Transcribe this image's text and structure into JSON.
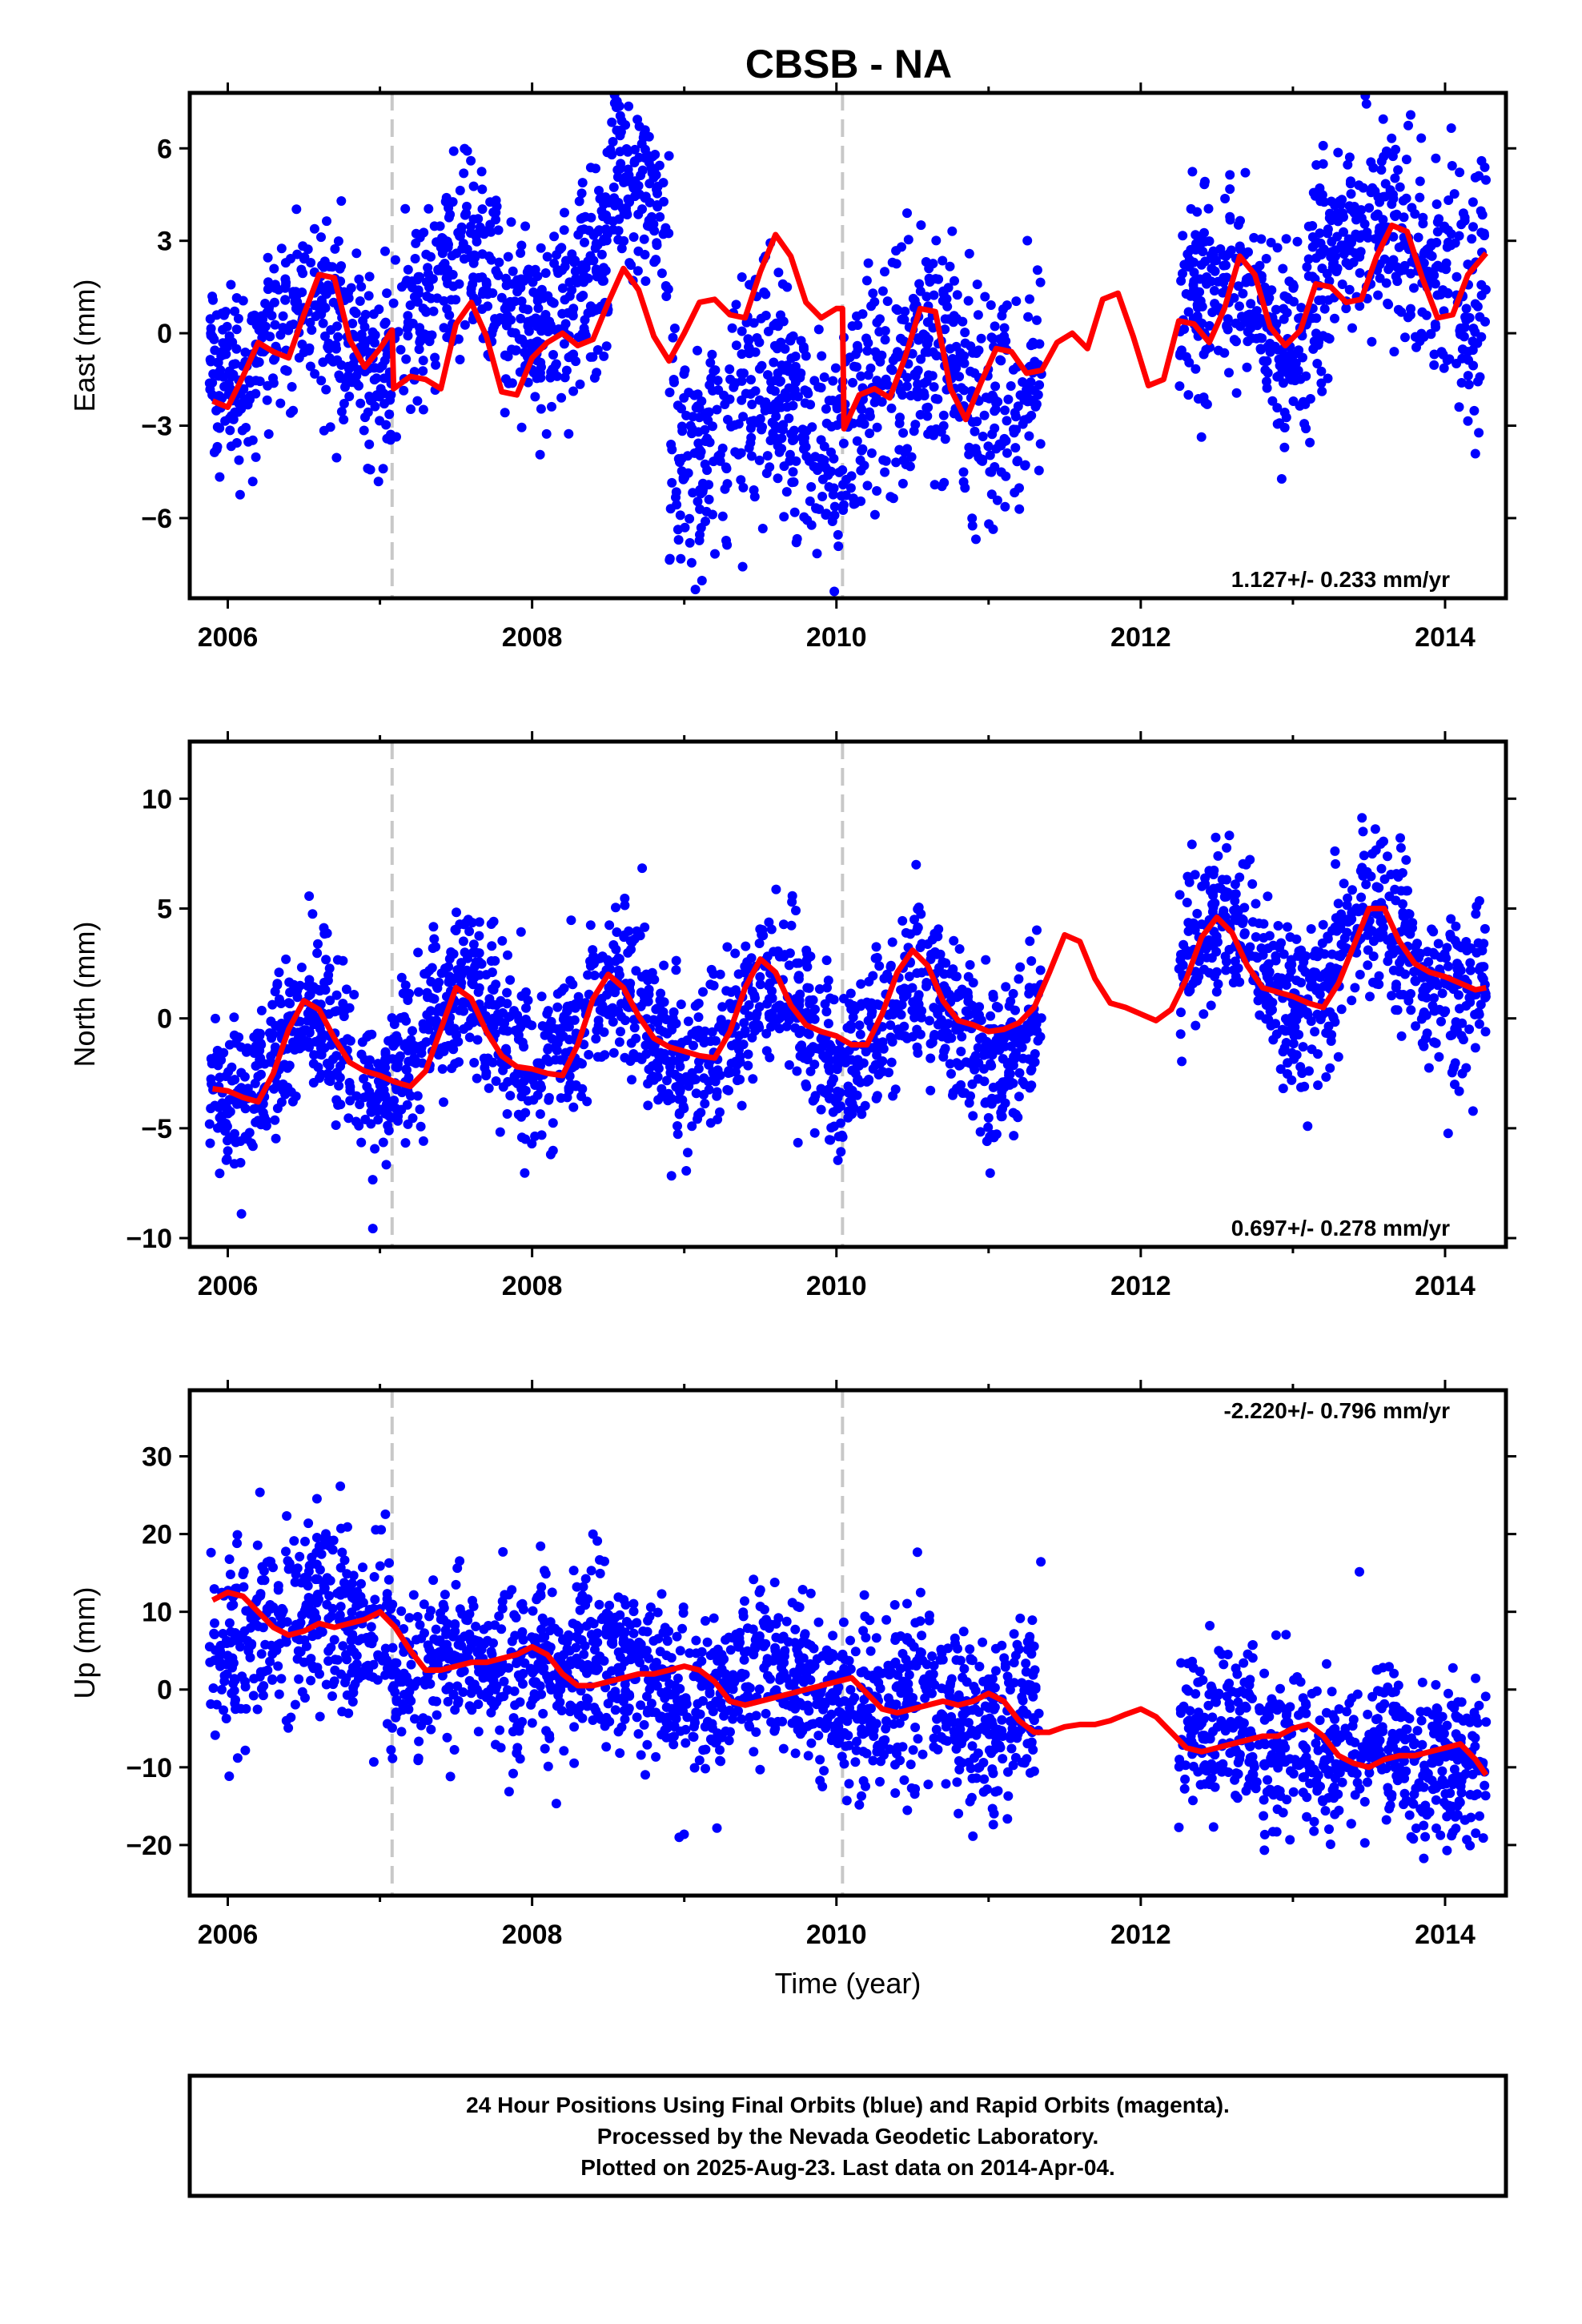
{
  "title": "CBSB - NA",
  "footer": {
    "lines": [
      "24 Hour Positions Using Final Orbits (blue) and Rapid Orbits (magenta).",
      "Processed by the Nevada Geodetic Laboratory.",
      "Plotted on 2025-Aug-23. Last data on 2014-Apr-04."
    ]
  },
  "colors": {
    "points": "#0000ff",
    "model": "#ff0000",
    "breaks": "#c8c8c8",
    "frame": "#000000"
  },
  "chart_data": [
    {
      "type": "scatter",
      "name": "east",
      "ylabel": "East (mm)",
      "xlabel": "",
      "xlim": [
        2005.75,
        2014.4
      ],
      "ylim": [
        -8.6,
        7.8
      ],
      "xticks": [
        2006,
        2008,
        2010,
        2012,
        2014
      ],
      "xtick_labels": [
        "2006",
        "2008",
        "2010",
        "2012",
        "2014"
      ],
      "yticks": [
        6,
        3,
        0,
        -3,
        -6
      ],
      "ytick_labels": [
        "6",
        "3",
        "0",
        "−3",
        "−6"
      ],
      "rate_text": "1.127+/- 0.233 mm/yr",
      "rate_position": "bottom-right",
      "grid": false,
      "break_lines_x": [
        2007.08,
        2010.04
      ],
      "data_gap": [
        2011.35,
        2012.25
      ],
      "model_line": {
        "x": [
          2005.9,
          2006.0,
          2006.1,
          2006.2,
          2006.3,
          2006.4,
          2006.5,
          2006.6,
          2006.7,
          2006.8,
          2006.9,
          2007.0,
          2007.08,
          2007.09,
          2007.2,
          2007.3,
          2007.4,
          2007.5,
          2007.6,
          2007.7,
          2007.8,
          2007.9,
          2008.0,
          2008.1,
          2008.2,
          2008.3,
          2008.4,
          2008.5,
          2008.6,
          2008.7,
          2008.8,
          2008.9,
          2009.0,
          2009.1,
          2009.2,
          2009.3,
          2009.4,
          2009.5,
          2009.6,
          2009.7,
          2009.8,
          2009.9,
          2010.0,
          2010.04,
          2010.05,
          2010.15,
          2010.25,
          2010.35,
          2010.45,
          2010.55,
          2010.65,
          2010.75,
          2010.85,
          2010.95,
          2011.05,
          2011.15,
          2011.25,
          2011.35,
          2011.45,
          2011.55,
          2011.65,
          2011.75,
          2011.85,
          2011.95,
          2012.05,
          2012.15,
          2012.25,
          2012.35,
          2012.45,
          2012.55,
          2012.65,
          2012.75,
          2012.85,
          2012.95,
          2013.05,
          2013.15,
          2013.25,
          2013.35,
          2013.45,
          2013.55,
          2013.65,
          2013.75,
          2013.85,
          2013.95,
          2014.05,
          2014.15,
          2014.27
        ],
        "y": [
          -2.2,
          -2.4,
          -1.4,
          -0.3,
          -0.6,
          -0.8,
          0.6,
          1.9,
          1.8,
          -0.2,
          -1.1,
          -0.5,
          0.1,
          -1.8,
          -1.4,
          -1.5,
          -1.8,
          0.3,
          1.0,
          -0.1,
          -1.9,
          -2.0,
          -0.8,
          -0.3,
          0.0,
          -0.4,
          -0.2,
          1.0,
          2.1,
          1.4,
          -0.1,
          -0.9,
          0.0,
          1.0,
          1.1,
          0.6,
          0.5,
          2.0,
          3.2,
          2.5,
          1.0,
          0.5,
          0.8,
          0.8,
          -3.1,
          -2.0,
          -1.8,
          -2.1,
          -0.8,
          0.8,
          0.7,
          -1.8,
          -2.8,
          -1.6,
          -0.5,
          -0.6,
          -1.3,
          -1.2,
          -0.3,
          0.0,
          -0.5,
          1.1,
          1.3,
          -0.1,
          -1.7,
          -1.5,
          0.4,
          0.3,
          -0.3,
          0.8,
          2.5,
          1.9,
          0.2,
          -0.4,
          0.1,
          1.6,
          1.5,
          1.0,
          1.1,
          2.5,
          3.5,
          3.3,
          1.8,
          0.5,
          0.6,
          1.9,
          2.6
        ]
      },
      "points": {
        "count": 2400,
        "segments": [
          {
            "x_start": 2005.88,
            "x_end": 2007.08,
            "mean": -0.3,
            "sd": 1.5
          },
          {
            "x_start": 2007.08,
            "x_end": 2008.5,
            "mean": 1.3,
            "sd": 1.6
          },
          {
            "x_start": 2008.5,
            "x_end": 2008.9,
            "mean": 4.3,
            "sd": 1.5
          },
          {
            "x_start": 2008.9,
            "x_end": 2010.04,
            "mean": -3.0,
            "sd": 1.9
          },
          {
            "x_start": 2010.04,
            "x_end": 2011.35,
            "mean": -1.6,
            "sd": 1.9
          },
          {
            "x_start": 2012.25,
            "x_end": 2013.1,
            "mean": 0.7,
            "sd": 1.7
          },
          {
            "x_start": 2013.1,
            "x_end": 2014.27,
            "mean": 2.4,
            "sd": 1.8
          }
        ],
        "seasonal_amplitude": 1.2
      }
    },
    {
      "type": "scatter",
      "name": "north",
      "ylabel": "North (mm)",
      "xlabel": "",
      "xlim": [
        2005.75,
        2014.4
      ],
      "ylim": [
        -10.4,
        12.6
      ],
      "xticks": [
        2006,
        2008,
        2010,
        2012,
        2014
      ],
      "xtick_labels": [
        "2006",
        "2008",
        "2010",
        "2012",
        "2014"
      ],
      "yticks": [
        10,
        5,
        0,
        -5,
        -10
      ],
      "ytick_labels": [
        "10",
        "5",
        "0",
        "−5",
        "−10"
      ],
      "rate_text": "0.697+/- 0.278 mm/yr",
      "rate_position": "bottom-right",
      "grid": false,
      "break_lines_x": [
        2007.08,
        2010.04
      ],
      "data_gap": [
        2011.35,
        2012.25
      ],
      "model_line": {
        "x": [
          2005.9,
          2006.0,
          2006.1,
          2006.2,
          2006.3,
          2006.4,
          2006.5,
          2006.6,
          2006.7,
          2006.8,
          2006.9,
          2007.0,
          2007.1,
          2007.2,
          2007.3,
          2007.4,
          2007.5,
          2007.6,
          2007.7,
          2007.8,
          2007.9,
          2008.0,
          2008.1,
          2008.2,
          2008.3,
          2008.4,
          2008.5,
          2008.6,
          2008.7,
          2008.8,
          2008.9,
          2009.0,
          2009.1,
          2009.2,
          2009.3,
          2009.4,
          2009.5,
          2009.6,
          2009.7,
          2009.8,
          2009.9,
          2010.0,
          2010.1,
          2010.2,
          2010.3,
          2010.4,
          2010.5,
          2010.6,
          2010.7,
          2010.8,
          2010.9,
          2011.0,
          2011.1,
          2011.2,
          2011.3,
          2011.4,
          2011.5,
          2011.6,
          2011.7,
          2011.8,
          2011.9,
          2012.0,
          2012.1,
          2012.2,
          2012.3,
          2012.4,
          2012.5,
          2012.6,
          2012.7,
          2012.8,
          2012.9,
          2013.0,
          2013.1,
          2013.2,
          2013.3,
          2013.4,
          2013.5,
          2013.6,
          2013.7,
          2013.8,
          2013.9,
          2014.0,
          2014.1,
          2014.2,
          2014.27
        ],
        "y": [
          -3.2,
          -3.3,
          -3.6,
          -3.8,
          -2.5,
          -0.5,
          0.8,
          0.4,
          -0.9,
          -2.0,
          -2.4,
          -2.6,
          -2.9,
          -3.1,
          -2.4,
          -0.5,
          1.4,
          0.9,
          -0.6,
          -1.7,
          -2.2,
          -2.3,
          -2.5,
          -2.6,
          -1.2,
          0.9,
          2.0,
          1.4,
          0.1,
          -0.9,
          -1.3,
          -1.5,
          -1.7,
          -1.8,
          -0.6,
          1.4,
          2.7,
          2.1,
          0.6,
          -0.3,
          -0.6,
          -0.8,
          -1.2,
          -1.2,
          0.2,
          2.1,
          3.1,
          2.4,
          0.8,
          -0.1,
          -0.3,
          -0.6,
          -0.5,
          -0.2,
          0.5,
          2.1,
          3.8,
          3.5,
          1.8,
          0.7,
          0.5,
          0.2,
          -0.1,
          0.4,
          1.8,
          3.7,
          4.6,
          3.9,
          2.4,
          1.4,
          1.2,
          1.0,
          0.7,
          0.5,
          1.6,
          3.3,
          5.0,
          5.0,
          3.5,
          2.5,
          2.1,
          1.9,
          1.6,
          1.3,
          1.4
        ]
      },
      "points": {
        "count": 2400,
        "segments": [
          {
            "x_start": 2005.88,
            "x_end": 2007.08,
            "mean": -1.8,
            "sd": 1.7
          },
          {
            "x_start": 2007.08,
            "x_end": 2008.5,
            "mean": -0.6,
            "sd": 1.9
          },
          {
            "x_start": 2008.5,
            "x_end": 2010.04,
            "mean": -0.5,
            "sd": 2.0
          },
          {
            "x_start": 2010.04,
            "x_end": 2011.35,
            "mean": -0.2,
            "sd": 1.8
          },
          {
            "x_start": 2012.25,
            "x_end": 2013.1,
            "mean": 2.4,
            "sd": 1.8
          },
          {
            "x_start": 2013.1,
            "x_end": 2014.27,
            "mean": 2.6,
            "sd": 1.9
          }
        ],
        "seasonal_amplitude": 2.0
      }
    },
    {
      "type": "scatter",
      "name": "up",
      "ylabel": "Up (mm)",
      "xlabel": "Time (year)",
      "xlim": [
        2005.75,
        2014.4
      ],
      "ylim": [
        -26.5,
        38.5
      ],
      "xticks": [
        2006,
        2008,
        2010,
        2012,
        2014
      ],
      "xtick_labels": [
        "2006",
        "2008",
        "2010",
        "2012",
        "2014"
      ],
      "yticks": [
        30,
        20,
        10,
        0,
        -10,
        -20
      ],
      "ytick_labels": [
        "30",
        "20",
        "10",
        "0",
        "−10",
        "−20"
      ],
      "rate_text": "-2.220+/- 0.796 mm/yr",
      "rate_position": "top-right",
      "grid": false,
      "break_lines_x": [
        2007.08,
        2010.04
      ],
      "data_gap": [
        2011.35,
        2012.25
      ],
      "model_line": {
        "x": [
          2005.9,
          2006.0,
          2006.1,
          2006.2,
          2006.3,
          2006.4,
          2006.5,
          2006.6,
          2006.7,
          2006.8,
          2006.9,
          2007.0,
          2007.1,
          2007.2,
          2007.3,
          2007.4,
          2007.5,
          2007.6,
          2007.7,
          2007.8,
          2007.9,
          2008.0,
          2008.1,
          2008.2,
          2008.3,
          2008.4,
          2008.5,
          2008.6,
          2008.7,
          2008.8,
          2008.9,
          2009.0,
          2009.1,
          2009.2,
          2009.3,
          2009.4,
          2009.5,
          2009.6,
          2009.7,
          2009.8,
          2009.9,
          2010.0,
          2010.1,
          2010.2,
          2010.3,
          2010.4,
          2010.5,
          2010.6,
          2010.7,
          2010.8,
          2010.9,
          2011.0,
          2011.1,
          2011.2,
          2011.3,
          2011.4,
          2011.5,
          2011.6,
          2011.7,
          2011.8,
          2011.9,
          2012.0,
          2012.1,
          2012.2,
          2012.3,
          2012.4,
          2012.5,
          2012.6,
          2012.7,
          2012.8,
          2012.9,
          2013.0,
          2013.1,
          2013.2,
          2013.3,
          2013.4,
          2013.5,
          2013.6,
          2013.7,
          2013.8,
          2013.9,
          2014.0,
          2014.1,
          2014.2,
          2014.27
        ],
        "y": [
          11.5,
          12.5,
          12.0,
          10.0,
          8.0,
          7.0,
          7.5,
          8.5,
          8.0,
          8.5,
          9.0,
          10.0,
          8.0,
          5.0,
          2.5,
          2.5,
          3.0,
          3.5,
          3.5,
          4.0,
          4.5,
          5.5,
          4.5,
          2.0,
          0.5,
          0.5,
          1.0,
          1.5,
          2.0,
          2.0,
          2.5,
          3.0,
          2.5,
          1.0,
          -1.5,
          -2.0,
          -1.5,
          -1.0,
          -0.5,
          0.0,
          0.5,
          1.0,
          1.5,
          -0.5,
          -2.5,
          -3.0,
          -2.5,
          -2.0,
          -1.5,
          -2.0,
          -1.5,
          -0.5,
          -1.5,
          -4.0,
          -5.5,
          -5.5,
          -4.8,
          -4.5,
          -4.5,
          -4.0,
          -3.2,
          -2.5,
          -3.5,
          -5.5,
          -7.5,
          -8.0,
          -7.5,
          -7.0,
          -6.5,
          -6.0,
          -6.0,
          -5.0,
          -4.5,
          -6.0,
          -8.5,
          -9.5,
          -10.0,
          -9.0,
          -8.5,
          -8.5,
          -8.0,
          -7.5,
          -7.0,
          -9.0,
          -11.0
        ]
      },
      "points": {
        "count": 2400,
        "segments": [
          {
            "x_start": 2005.88,
            "x_end": 2007.08,
            "mean": 8.5,
            "sd": 6.0
          },
          {
            "x_start": 2007.08,
            "x_end": 2008.5,
            "mean": 3.0,
            "sd": 5.5
          },
          {
            "x_start": 2008.5,
            "x_end": 2010.04,
            "mean": 0.8,
            "sd": 5.2
          },
          {
            "x_start": 2010.04,
            "x_end": 2011.35,
            "mean": -1.5,
            "sd": 6.0
          },
          {
            "x_start": 2012.25,
            "x_end": 2013.1,
            "mean": -6.5,
            "sd": 5.0
          },
          {
            "x_start": 2013.1,
            "x_end": 2014.27,
            "mean": -8.5,
            "sd": 5.0
          }
        ],
        "seasonal_amplitude": 2.0
      }
    }
  ]
}
